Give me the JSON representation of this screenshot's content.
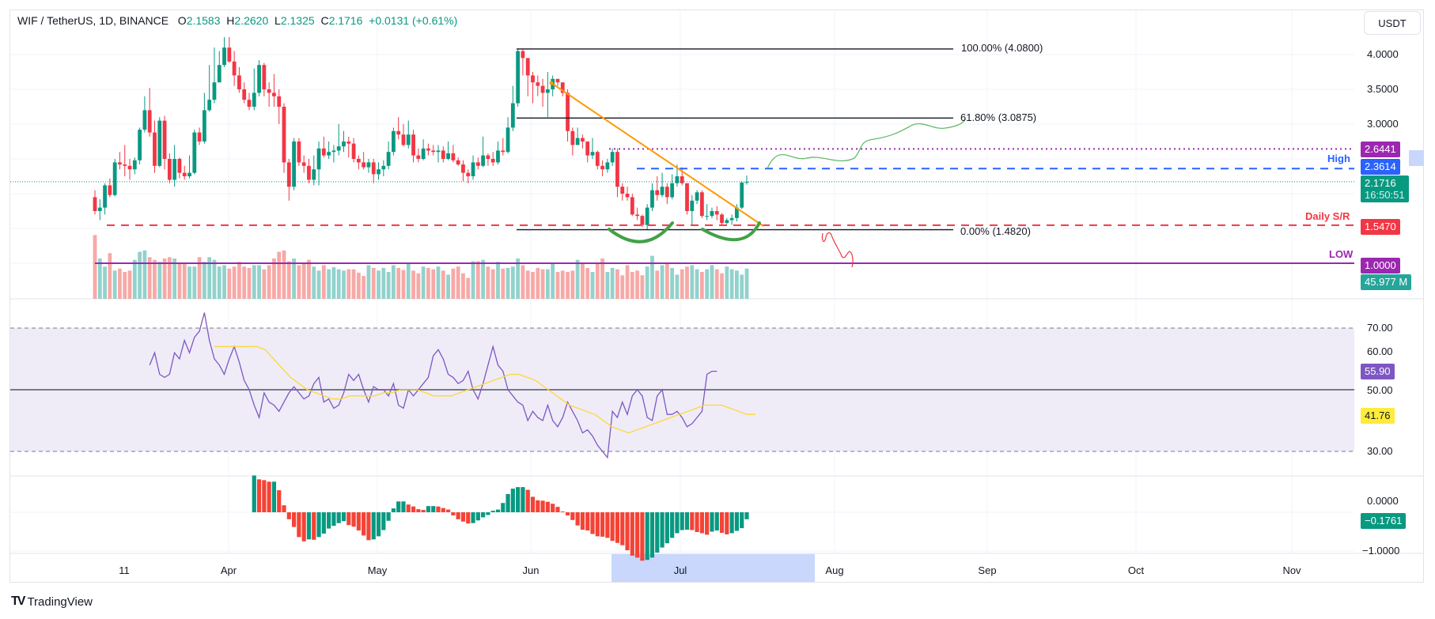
{
  "header": {
    "symbol": "WIF / TetherUS, 1D, BINANCE",
    "open_label": "O",
    "open": "2.1583",
    "high_label": "H",
    "high": "2.2620",
    "low_label": "L",
    "low": "2.1325",
    "close_label": "C",
    "close": "2.1716",
    "change": "+0.0131 (+0.61%)"
  },
  "currency_button": "USDT",
  "price_axis": [
    "4.0000",
    "3.5000",
    "3.0000"
  ],
  "rsi_axis": [
    "70.00",
    "60.00",
    "50.00",
    "30.00"
  ],
  "ao_axis": [
    "0.0000",
    "−1.0000"
  ],
  "time_axis": [
    "11",
    "Apr",
    "May",
    "Jun",
    "Jul",
    "Aug",
    "Sep",
    "Oct",
    "Nov"
  ],
  "price_tags": {
    "target": "2.6441",
    "high": "2.3614",
    "last": "2.1716",
    "countdown": "16:50:51",
    "support": "1.5470",
    "low": "1.0000",
    "volume": "45.977 M",
    "rsi": "55.90",
    "rsi_ma": "41.76",
    "ao": "−0.1761"
  },
  "annotations": {
    "high_label": "High",
    "support_label": "Daily S/R",
    "low_label": "LOW",
    "fib_100": "100.00% (4.0800)",
    "fib_618": "61.80% (3.0875)",
    "fib_0": "0.00% (1.4820)"
  },
  "brand": "TradingView",
  "colors": {
    "up": "#089981",
    "down": "#f23645",
    "vol_up": "#92d2cc",
    "vol_down": "#f7a9a7",
    "ao_up": "#089981",
    "ao_down": "#f44336",
    "rsi": "#7e57c2",
    "rsi_ma": "#fdd835",
    "high_line": "#2962ff",
    "support_line": "#f23645",
    "target_line": "#9c27b0",
    "low_line": "#9c27b0",
    "trendline": "#ff9800",
    "pattern": "#43a047"
  },
  "chart_data": {
    "type": "candlestick",
    "title": "WIF / TetherUS, 1D, BINANCE",
    "xlabel": "",
    "ylabel": "USDT",
    "x_start": "Mar 5",
    "x_end": "Jul 16",
    "ylim": [
      0.5,
      4.6
    ],
    "candles": [
      [
        1.95,
        1.75,
        2.05,
        1.7
      ],
      [
        1.75,
        1.8,
        1.92,
        1.62
      ],
      [
        1.8,
        2.12,
        2.15,
        1.7
      ],
      [
        2.12,
        1.98,
        2.22,
        1.95
      ],
      [
        1.98,
        2.45,
        2.5,
        1.96
      ],
      [
        2.45,
        2.42,
        2.6,
        2.35
      ],
      [
        2.42,
        2.4,
        2.7,
        2.25
      ],
      [
        2.4,
        2.35,
        2.5,
        2.2
      ],
      [
        2.35,
        2.48,
        2.52,
        2.28
      ],
      [
        2.48,
        2.92,
        2.95,
        2.42
      ],
      [
        2.92,
        3.2,
        3.4,
        2.88
      ],
      [
        3.2,
        2.88,
        3.52,
        2.82
      ],
      [
        2.88,
        2.4,
        3.05,
        2.3
      ],
      [
        2.4,
        3.05,
        3.1,
        2.38
      ],
      [
        3.05,
        2.5,
        3.12,
        2.35
      ],
      [
        2.5,
        2.2,
        2.58,
        2.15
      ],
      [
        2.2,
        2.5,
        2.7,
        2.1
      ],
      [
        2.5,
        2.3,
        2.52,
        2.22
      ],
      [
        2.3,
        2.25,
        2.4,
        2.2
      ],
      [
        2.25,
        2.3,
        2.55,
        2.22
      ],
      [
        2.3,
        2.88,
        2.92,
        2.28
      ],
      [
        2.88,
        2.75,
        2.95,
        2.7
      ],
      [
        2.75,
        3.2,
        3.45,
        2.72
      ],
      [
        3.2,
        3.35,
        3.85,
        3.18
      ],
      [
        3.35,
        3.6,
        4.1,
        3.3
      ],
      [
        3.6,
        3.85,
        4.05,
        3.65
      ],
      [
        3.85,
        4.1,
        4.25,
        3.82
      ],
      [
        4.1,
        3.9,
        4.25,
        3.88
      ],
      [
        3.9,
        3.7,
        4.05,
        3.55
      ],
      [
        3.7,
        3.5,
        3.82,
        3.45
      ],
      [
        3.5,
        3.35,
        3.6,
        3.3
      ],
      [
        3.35,
        3.25,
        3.45,
        3.2
      ],
      [
        3.25,
        3.45,
        3.8,
        3.2
      ],
      [
        3.45,
        3.85,
        3.92,
        3.4
      ],
      [
        3.85,
        3.5,
        3.88,
        3.4
      ],
      [
        3.5,
        3.45,
        3.6,
        3.25
      ],
      [
        3.45,
        3.4,
        3.72,
        3.25
      ],
      [
        3.4,
        3.25,
        3.5,
        3.0
      ],
      [
        3.25,
        2.45,
        3.3,
        2.3
      ],
      [
        2.45,
        2.1,
        2.5,
        1.9
      ],
      [
        2.1,
        2.75,
        2.8,
        2.05
      ],
      [
        2.75,
        2.45,
        2.8,
        2.4
      ],
      [
        2.45,
        2.4,
        2.55,
        2.3
      ],
      [
        2.4,
        2.2,
        2.5,
        2.15
      ],
      [
        2.2,
        2.35,
        2.55,
        2.12
      ],
      [
        2.35,
        2.65,
        2.75,
        2.12
      ],
      [
        2.65,
        2.55,
        2.82,
        2.52
      ],
      [
        2.55,
        2.6,
        2.75,
        2.5
      ],
      [
        2.6,
        2.62,
        2.7,
        2.45
      ],
      [
        2.62,
        2.68,
        3.0,
        2.55
      ],
      [
        2.68,
        2.75,
        2.9,
        2.6
      ],
      [
        2.75,
        2.72,
        2.82,
        2.52
      ],
      [
        2.72,
        2.5,
        2.8,
        2.45
      ],
      [
        2.5,
        2.45,
        2.55,
        2.35
      ],
      [
        2.45,
        2.38,
        2.6,
        2.35
      ],
      [
        2.38,
        2.45,
        2.5,
        2.3
      ],
      [
        2.45,
        2.28,
        2.5,
        2.15
      ],
      [
        2.28,
        2.35,
        2.45,
        2.2
      ],
      [
        2.35,
        2.4,
        2.48,
        2.25
      ],
      [
        2.4,
        2.6,
        2.75,
        2.35
      ],
      [
        2.6,
        2.9,
        2.95,
        2.55
      ],
      [
        2.9,
        2.85,
        3.1,
        2.78
      ],
      [
        2.85,
        2.7,
        3.0,
        2.68
      ],
      [
        2.7,
        2.85,
        3.05,
        2.65
      ],
      [
        2.85,
        2.55,
        2.92,
        2.45
      ],
      [
        2.55,
        2.5,
        2.65,
        2.45
      ],
      [
        2.5,
        2.65,
        2.78,
        2.48
      ],
      [
        2.65,
        2.62,
        2.72,
        2.55
      ],
      [
        2.62,
        2.6,
        2.7,
        2.55
      ],
      [
        2.6,
        2.62,
        2.7,
        2.45
      ],
      [
        2.62,
        2.5,
        2.68,
        2.45
      ],
      [
        2.5,
        2.58,
        2.75,
        2.48
      ],
      [
        2.58,
        2.48,
        2.7,
        2.45
      ],
      [
        2.48,
        2.42,
        2.52,
        2.4
      ],
      [
        2.42,
        2.3,
        2.48,
        2.18
      ],
      [
        2.3,
        2.25,
        2.35,
        2.15
      ],
      [
        2.25,
        2.45,
        2.55,
        2.2
      ],
      [
        2.45,
        2.4,
        2.52,
        2.35
      ],
      [
        2.4,
        2.55,
        2.82,
        2.38
      ],
      [
        2.55,
        2.5,
        2.58,
        2.4
      ],
      [
        2.5,
        2.45,
        2.6,
        2.4
      ],
      [
        2.45,
        2.62,
        2.75,
        2.42
      ],
      [
        2.62,
        2.6,
        2.8,
        2.55
      ],
      [
        2.6,
        2.95,
        3.1,
        2.58
      ],
      [
        2.95,
        3.3,
        3.55,
        2.9
      ],
      [
        3.3,
        4.05,
        4.08,
        3.25
      ],
      [
        4.05,
        3.95,
        4.08,
        3.7
      ],
      [
        3.95,
        3.7,
        3.85,
        3.4
      ],
      [
        3.7,
        3.6,
        3.75,
        3.3
      ],
      [
        3.6,
        3.55,
        3.7,
        3.4
      ],
      [
        3.55,
        3.45,
        3.65,
        3.25
      ],
      [
        3.45,
        3.5,
        3.75,
        3.1
      ],
      [
        3.5,
        3.65,
        3.7,
        3.4
      ],
      [
        3.65,
        3.6,
        3.6,
        3.55
      ],
      [
        3.6,
        3.45,
        3.6,
        3.4
      ],
      [
        3.45,
        2.9,
        3.5,
        2.75
      ],
      [
        2.9,
        2.7,
        2.95,
        2.55
      ],
      [
        2.7,
        2.8,
        2.95,
        2.7
      ],
      [
        2.8,
        2.75,
        2.85,
        2.65
      ],
      [
        2.75,
        2.55,
        2.75,
        2.45
      ],
      [
        2.55,
        2.6,
        2.8,
        2.5
      ],
      [
        2.6,
        2.4,
        2.62,
        2.35
      ],
      [
        2.4,
        2.35,
        2.48,
        2.25
      ],
      [
        2.35,
        2.45,
        2.5,
        2.3
      ],
      [
        2.45,
        2.6,
        2.65,
        2.4
      ],
      [
        2.6,
        2.1,
        2.65,
        1.95
      ],
      [
        2.1,
        2.0,
        2.15,
        1.9
      ],
      [
        2.0,
        1.95,
        2.1,
        1.9
      ],
      [
        1.95,
        1.7,
        2.0,
        1.68
      ],
      [
        1.7,
        1.68,
        1.8,
        1.62
      ],
      [
        1.68,
        1.55,
        1.7,
        1.52
      ],
      [
        1.55,
        1.8,
        1.85,
        1.48
      ],
      [
        1.8,
        2.05,
        2.15,
        1.75
      ],
      [
        2.05,
        1.98,
        2.25,
        1.9
      ],
      [
        1.98,
        2.1,
        2.3,
        1.95
      ],
      [
        2.1,
        1.95,
        2.15,
        1.85
      ],
      [
        1.95,
        2.15,
        2.28,
        1.92
      ],
      [
        2.15,
        2.25,
        2.42,
        2.1
      ],
      [
        2.25,
        2.15,
        2.38,
        2.12
      ],
      [
        2.15,
        1.75,
        2.15,
        1.7
      ],
      [
        1.75,
        1.9,
        1.98,
        1.55
      ],
      [
        1.9,
        2.02,
        2.05,
        1.85
      ],
      [
        2.02,
        1.68,
        2.05,
        1.65
      ],
      [
        1.68,
        1.68,
        1.85,
        1.62
      ],
      [
        1.68,
        1.75,
        1.8,
        1.65
      ],
      [
        1.75,
        1.7,
        1.82,
        1.62
      ],
      [
        1.7,
        1.58,
        1.72,
        1.55
      ],
      [
        1.58,
        1.62,
        1.65,
        1.56
      ],
      [
        1.62,
        1.65,
        1.7,
        1.55
      ],
      [
        1.65,
        1.8,
        1.85,
        1.6
      ],
      [
        1.8,
        2.16,
        2.18,
        1.78
      ],
      [
        2.16,
        2.17,
        2.26,
        2.13
      ]
    ],
    "volume": [
      95,
      60,
      48,
      68,
      42,
      45,
      40,
      42,
      58,
      70,
      72,
      62,
      58,
      55,
      60,
      62,
      60,
      52,
      52,
      48,
      48,
      62,
      55,
      62,
      58,
      48,
      50,
      45,
      48,
      55,
      48,
      46,
      50,
      50,
      44,
      50,
      60,
      70,
      72,
      56,
      60,
      50,
      52,
      58,
      48,
      42,
      50,
      44,
      47,
      44,
      42,
      44,
      44,
      39,
      34,
      50,
      46,
      42,
      46,
      40,
      50,
      46,
      43,
      52,
      42,
      38,
      48,
      46,
      44,
      48,
      42,
      36,
      45,
      48,
      38,
      31,
      56,
      56,
      58,
      48,
      44,
      55,
      45,
      46,
      48,
      60,
      50,
      42,
      40,
      46,
      44,
      44,
      52,
      40,
      42,
      40,
      42,
      58,
      52,
      46,
      40,
      54,
      60,
      40,
      46,
      44,
      35,
      50,
      40,
      42,
      35,
      48,
      64,
      42,
      50,
      54,
      46,
      36,
      44,
      48,
      50,
      44,
      40,
      44,
      50,
      44,
      38,
      48,
      44,
      42,
      36,
      45,
      38
    ],
    "rsi": [
      58,
      62,
      55,
      54,
      55,
      62,
      60,
      66,
      62,
      67,
      69,
      75,
      66,
      60,
      58,
      55,
      60,
      64,
      59,
      53,
      50,
      45,
      41,
      49,
      46,
      45,
      43,
      46,
      49,
      51,
      49,
      47,
      48,
      52,
      54,
      46,
      47,
      44,
      45,
      49,
      55,
      53,
      55,
      50,
      46,
      51,
      50,
      50,
      48,
      52,
      45,
      44,
      50,
      48,
      50,
      52,
      54,
      61,
      63,
      60,
      55,
      54,
      52,
      53,
      56,
      50,
      47,
      52,
      58,
      64,
      58,
      56,
      50,
      48,
      46,
      45,
      40,
      43,
      41,
      40,
      45,
      40,
      38,
      41,
      46,
      43,
      40,
      36,
      37,
      35,
      32,
      30,
      28,
      43,
      41,
      46,
      42,
      48,
      50,
      48,
      41,
      40,
      48,
      50,
      42,
      42,
      43,
      41,
      38,
      39,
      41,
      43,
      55,
      56,
      56
    ],
    "rsi_ma": [
      64,
      64,
      64,
      64,
      64,
      64,
      63,
      60,
      57,
      54,
      52,
      50,
      49,
      48,
      47,
      47,
      48,
      48,
      48,
      48,
      49,
      49,
      50,
      50,
      50,
      49,
      48,
      48,
      48,
      49,
      50,
      51,
      52,
      53,
      54,
      55,
      55,
      54,
      53,
      51,
      49,
      47,
      45,
      44,
      43,
      42,
      40,
      38,
      37,
      36,
      37,
      38,
      39,
      40,
      41,
      42,
      43,
      44,
      45,
      45,
      45,
      44,
      43,
      42,
      42
    ],
    "ao": [
      0.95,
      0.85,
      0.83,
      0.79,
      0.79,
      0.57,
      0.18,
      -0.18,
      -0.38,
      -0.64,
      -0.75,
      -0.7,
      -0.71,
      -0.64,
      -0.55,
      -0.42,
      -0.35,
      -0.28,
      -0.23,
      -0.33,
      -0.37,
      -0.47,
      -0.6,
      -0.72,
      -0.7,
      -0.62,
      -0.46,
      -0.22,
      0.1,
      0.28,
      0.28,
      0.2,
      0.15,
      0.08,
      0.06,
      0.16,
      0.16,
      0.15,
      0.11,
      0.07,
      -0.08,
      -0.18,
      -0.24,
      -0.29,
      -0.28,
      -0.21,
      -0.13,
      -0.07,
      0.04,
      0.07,
      0.24,
      0.47,
      0.61,
      0.65,
      0.65,
      0.58,
      0.4,
      0.31,
      0.3,
      0.27,
      0.22,
      0.14,
      0.02,
      -0.08,
      -0.2,
      -0.34,
      -0.45,
      -0.47,
      -0.56,
      -0.62,
      -0.63,
      -0.66,
      -0.74,
      -0.79,
      -0.85,
      -0.98,
      -1.12,
      -1.17,
      -1.25,
      -1.23,
      -1.17,
      -1.04,
      -0.91,
      -0.8,
      -0.66,
      -0.54,
      -0.46,
      -0.45,
      -0.46,
      -0.51,
      -0.54,
      -0.58,
      -0.5,
      -0.47,
      -0.53,
      -0.57,
      -0.54,
      -0.48,
      -0.41,
      -0.18
    ]
  }
}
